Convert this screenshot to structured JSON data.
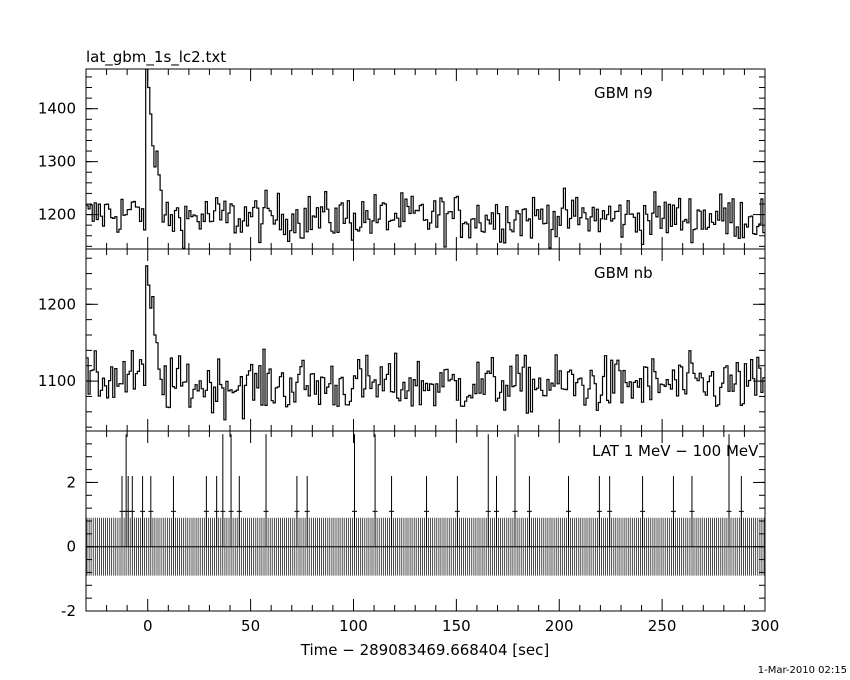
{
  "file_title": "lat_gbm_1s_lc2.txt",
  "timestamp": "1-Mar-2010 02:15",
  "chart_data": [
    {
      "type": "line",
      "title": "GBM n9",
      "xlim": [
        -30,
        300
      ],
      "ylim": [
        1135,
        1475
      ],
      "yticks": [
        1200,
        1300,
        1400
      ],
      "x_ticks_major": [
        0,
        50,
        100,
        150,
        200,
        250,
        300
      ],
      "series": [
        {
          "baseline": 1195,
          "noise": 32,
          "events": [
            {
              "x": -1,
              "value": 1475
            },
            {
              "x": 0,
              "value": 1440
            },
            {
              "x": 1,
              "value": 1390
            },
            {
              "x": 2,
              "value": 1330
            },
            {
              "x": 3,
              "value": 1290
            },
            {
              "x": 4,
              "value": 1320
            },
            {
              "x": 5,
              "value": 1275
            }
          ]
        }
      ]
    },
    {
      "type": "line",
      "title": "GBM nb",
      "xlim": [
        -30,
        300
      ],
      "ylim": [
        1035,
        1272
      ],
      "yticks": [
        1100,
        1200
      ],
      "x_ticks_major": [
        0,
        50,
        100,
        150,
        200,
        250,
        300
      ],
      "series": [
        {
          "baseline": 1095,
          "noise": 26,
          "events": [
            {
              "x": -1,
              "value": 1250
            },
            {
              "x": 0,
              "value": 1225
            },
            {
              "x": 1,
              "value": 1195
            },
            {
              "x": 2,
              "value": 1210
            },
            {
              "x": 3,
              "value": 1160
            },
            {
              "x": 4,
              "value": 1150
            }
          ]
        }
      ]
    },
    {
      "type": "line",
      "title": "LAT 1 MeV − 100 MeV",
      "xlim": [
        -30,
        300
      ],
      "ylim": [
        -2,
        3.6
      ],
      "yticks": [
        -2,
        0,
        2
      ],
      "x_ticks_major": [
        0,
        50,
        100,
        150,
        200,
        250,
        300
      ],
      "x_tick_labels": [
        "0",
        "50",
        "100",
        "150",
        "200",
        "250",
        "300"
      ],
      "xlabel": "Time − 289083469.668404 [sec]",
      "series": [
        {
          "band": [
            -0.9,
            0.9
          ],
          "spikes": [
            {
              "x": -13,
              "value": 2.2
            },
            {
              "x": -11,
              "value": 3.5
            },
            {
              "x": -10,
              "value": 2.2
            },
            {
              "x": -8,
              "value": 2.2
            },
            {
              "x": -3,
              "value": 2.2
            },
            {
              "x": 1,
              "value": 2.2
            },
            {
              "x": 12,
              "value": 2.2
            },
            {
              "x": 28,
              "value": 2.2
            },
            {
              "x": 33,
              "value": 2.2
            },
            {
              "x": 36,
              "value": 3.5
            },
            {
              "x": 40,
              "value": 3.5
            },
            {
              "x": 44,
              "value": 2.2
            },
            {
              "x": 57,
              "value": 3.5
            },
            {
              "x": 72,
              "value": 2.2
            },
            {
              "x": 77,
              "value": 2.2
            },
            {
              "x": 100,
              "value": 3.5
            },
            {
              "x": 110,
              "value": 3.5
            },
            {
              "x": 118,
              "value": 2.2
            },
            {
              "x": 135,
              "value": 2.2
            },
            {
              "x": 150,
              "value": 2.2
            },
            {
              "x": 165,
              "value": 3.5
            },
            {
              "x": 169,
              "value": 2.2
            },
            {
              "x": 178,
              "value": 3.5
            },
            {
              "x": 185,
              "value": 2.2
            },
            {
              "x": 204,
              "value": 2.2
            },
            {
              "x": 219,
              "value": 2.2
            },
            {
              "x": 224,
              "value": 2.2
            },
            {
              "x": 240,
              "value": 2.2
            },
            {
              "x": 255,
              "value": 2.2
            },
            {
              "x": 264,
              "value": 2.2
            },
            {
              "x": 282,
              "value": 3.5
            },
            {
              "x": 288,
              "value": 2.2
            }
          ]
        }
      ]
    }
  ]
}
